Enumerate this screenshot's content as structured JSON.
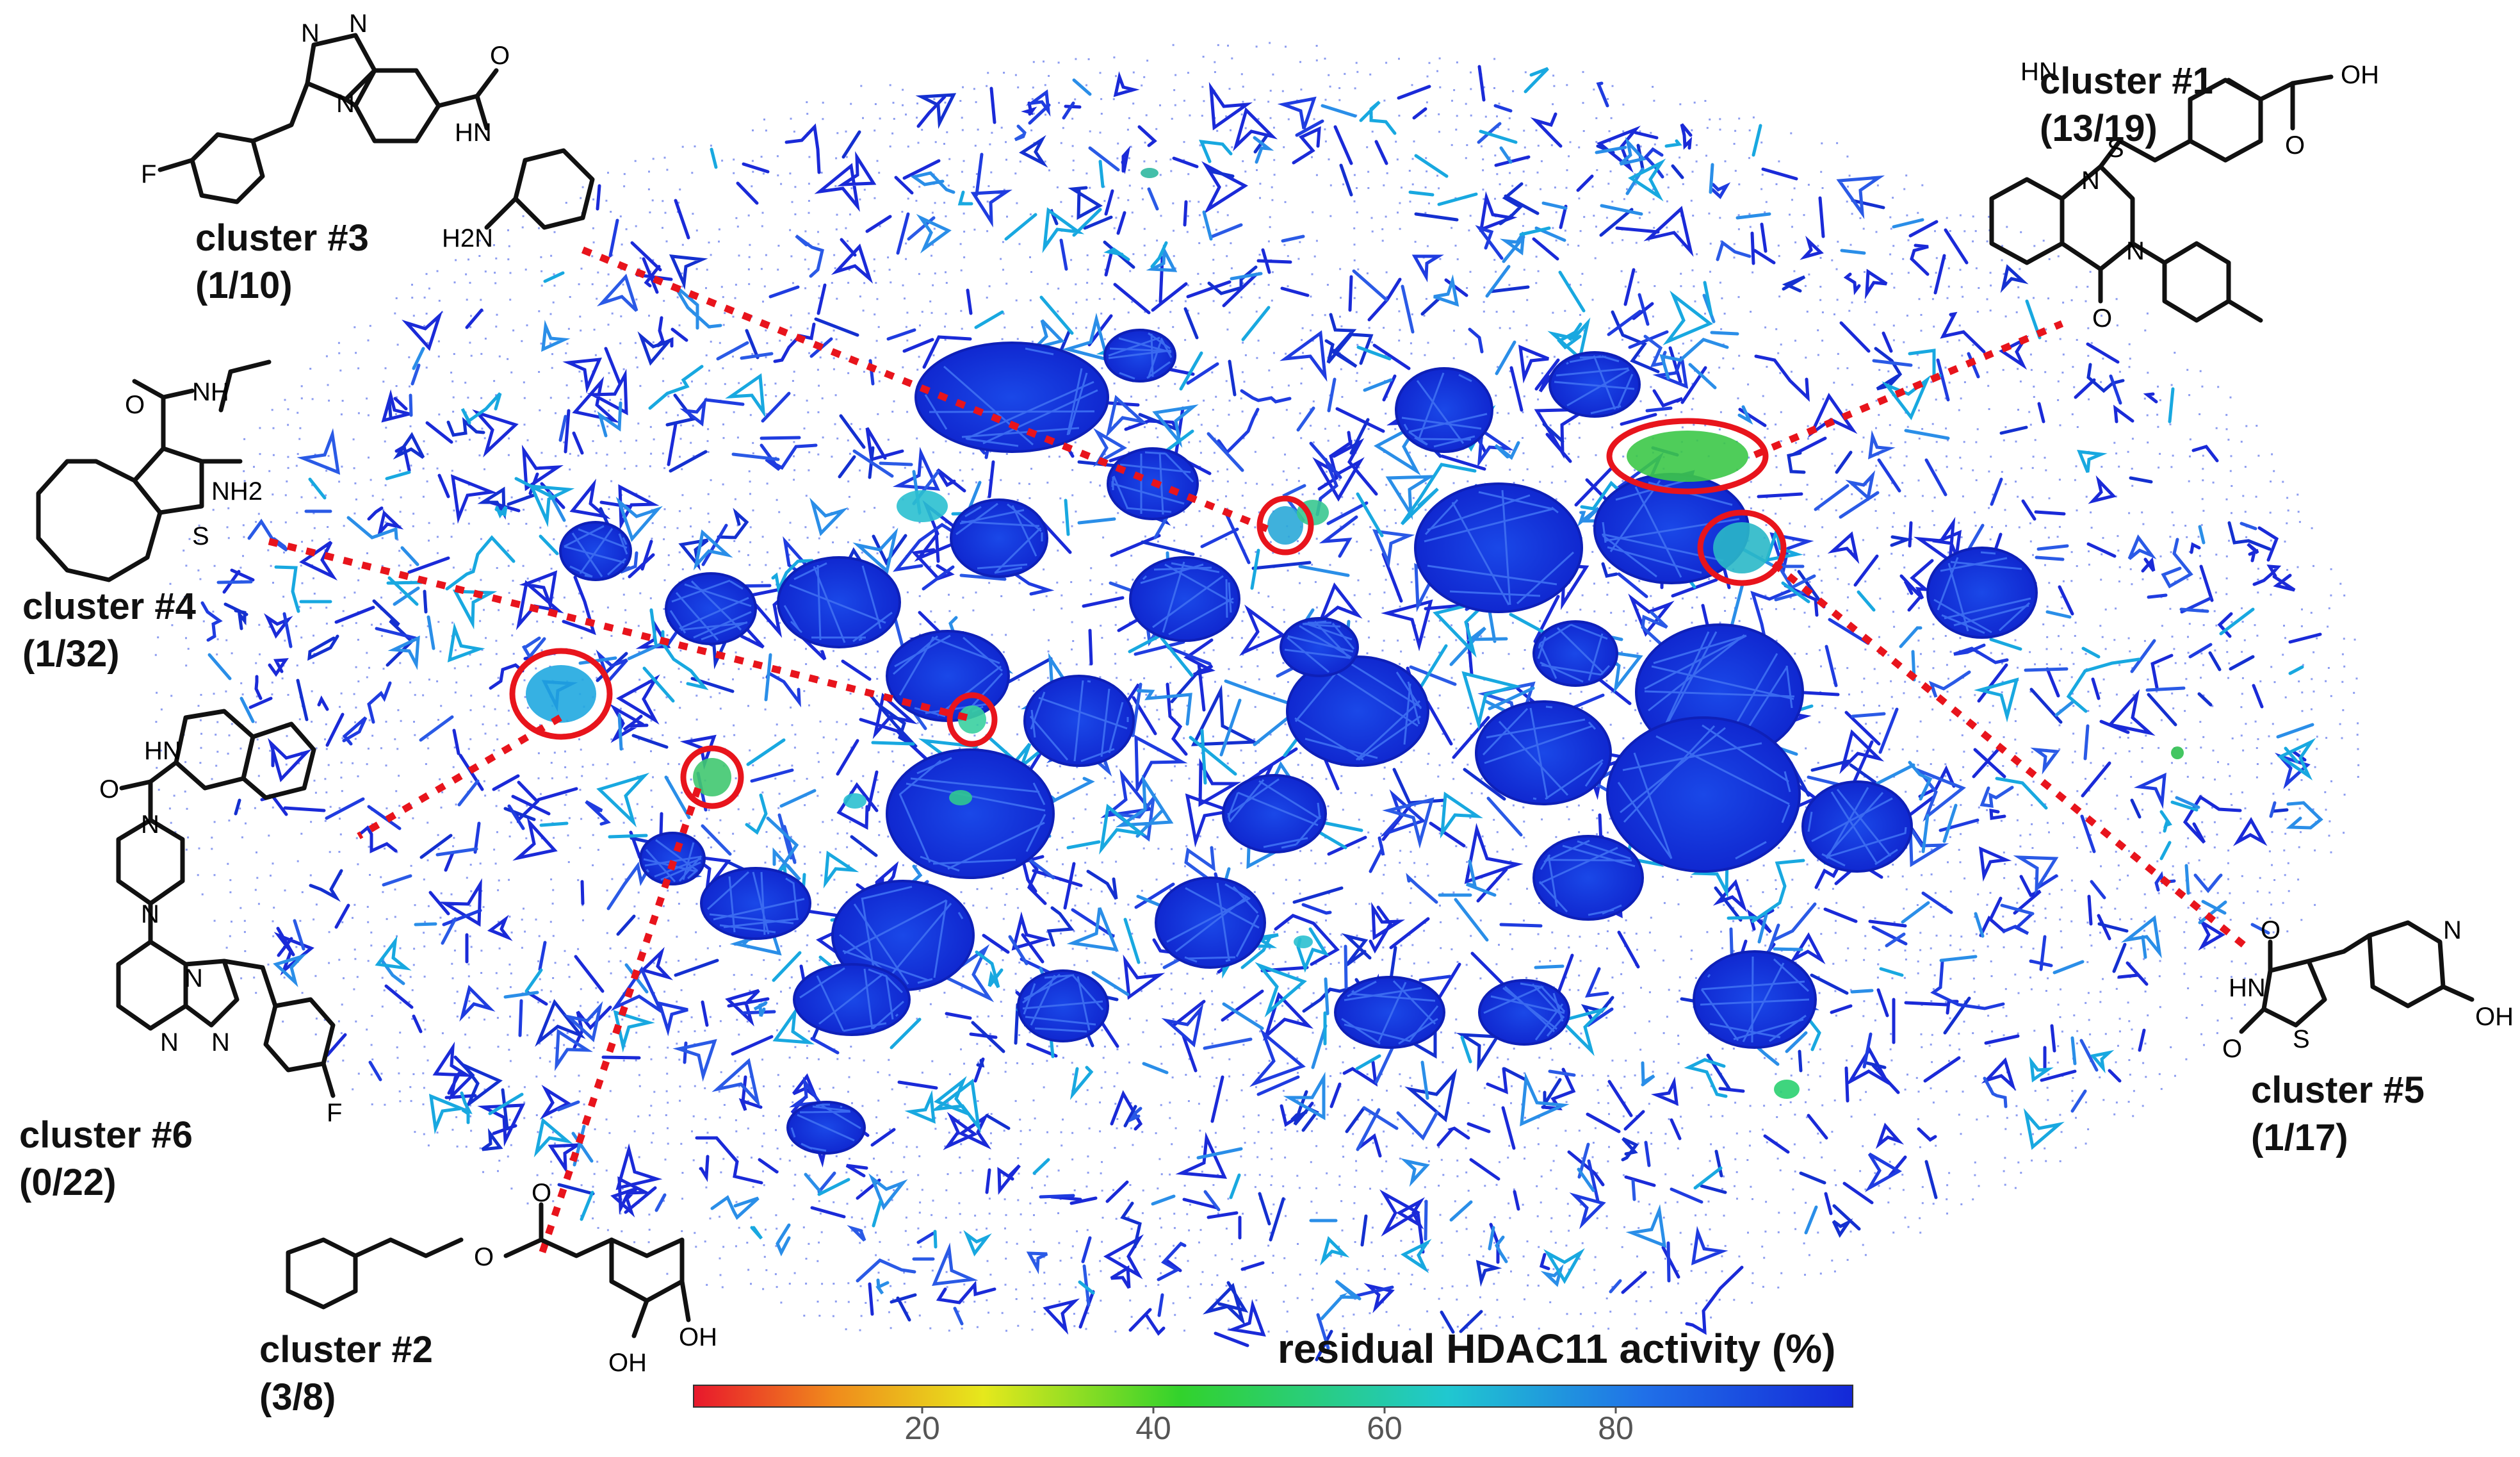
{
  "colorbar": {
    "title": "residual HDAC11 activity (%)",
    "ticks": [
      "20",
      "40",
      "60",
      "80"
    ],
    "gradient": [
      "#e8182c",
      "#f08a1c",
      "#e6e81c",
      "#32d22c",
      "#20c8d0",
      "#2070e8",
      "#1428d8"
    ]
  },
  "clusters": [
    {
      "id": "cluster-1",
      "name": "cluster #1",
      "ratio": "(13/19)"
    },
    {
      "id": "cluster-2",
      "name": "cluster #2",
      "ratio": "(3/8)"
    },
    {
      "id": "cluster-3",
      "name": "cluster #3",
      "ratio": "(1/10)"
    },
    {
      "id": "cluster-4",
      "name": "cluster #4",
      "ratio": "(1/32)"
    },
    {
      "id": "cluster-5",
      "name": "cluster #5",
      "ratio": "(1/17)"
    },
    {
      "id": "cluster-6",
      "name": "cluster #6",
      "ratio": "(0/22)"
    }
  ],
  "atoms": {
    "c1": [
      "HN",
      "OH",
      "O",
      "N",
      "S",
      "N",
      "O"
    ],
    "c2": [
      "O",
      "O",
      "OH",
      "OH"
    ],
    "c3": [
      "N",
      "N",
      "N",
      "O",
      "HN",
      "H2N",
      "F"
    ],
    "c4": [
      "O",
      "NH",
      "NH2",
      "S"
    ],
    "c5": [
      "O",
      "HN",
      "S",
      "O",
      "N",
      "OH"
    ],
    "c6": [
      "HN",
      "O",
      "N",
      "N",
      "N",
      "N",
      "N",
      "F"
    ]
  },
  "highlight_color": "#e8141c",
  "edge_color": "#1a2ad8",
  "background_dot_color": "#8c9cf0"
}
